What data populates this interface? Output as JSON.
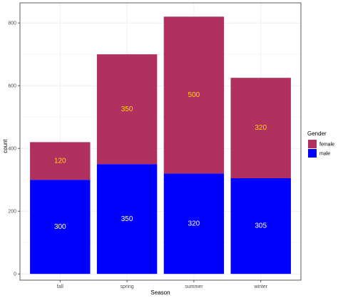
{
  "chart_data": {
    "type": "bar",
    "stacked": true,
    "xlabel": "Season",
    "ylabel": "count",
    "categories": [
      "fall",
      "spring",
      "summer",
      "winter"
    ],
    "ylim": [
      0,
      820
    ],
    "yticks": [
      0,
      200,
      400,
      600,
      800
    ],
    "grid": true,
    "legend": {
      "title": "Gender",
      "position": "right"
    },
    "series": [
      {
        "name": "male",
        "values": [
          300,
          350,
          320,
          305
        ],
        "color": "#0000ff",
        "label_color": "#ffffff",
        "labels": [
          "300",
          "350",
          "320",
          "305"
        ]
      },
      {
        "name": "female",
        "values": [
          120,
          350,
          500,
          320
        ],
        "color": "#b03060",
        "label_color": "#ffd700",
        "labels": [
          "120",
          "350",
          "500",
          "320"
        ]
      }
    ],
    "legend_order": [
      "female",
      "male"
    ]
  }
}
